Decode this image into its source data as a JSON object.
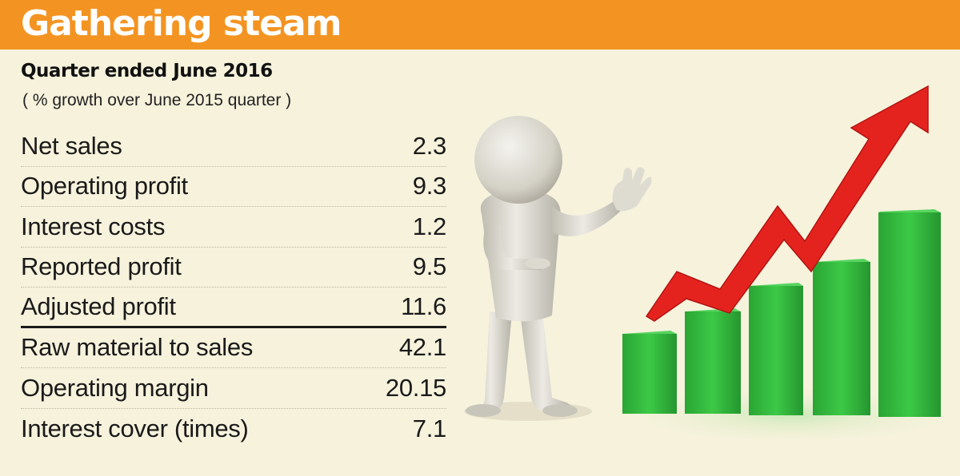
{
  "title": "Gathering steam",
  "heading": "Quarter ended June 2016",
  "subheading": "( % growth over June 2015 quarter )",
  "rows_group1": [
    {
      "label": "Net sales",
      "value": "2.3"
    },
    {
      "label": "Operating profit",
      "value": "9.3"
    },
    {
      "label": "Interest costs",
      "value": "1.2"
    },
    {
      "label": "Reported profit",
      "value": "9.5"
    },
    {
      "label": "Adjusted profit",
      "value": "11.6"
    }
  ],
  "rows_group2": [
    {
      "label": "Raw material to sales",
      "value": "42.1"
    },
    {
      "label": "Operating margin",
      "value": "20.15"
    },
    {
      "label": "Interest cover (times)",
      "value": "7.1"
    }
  ],
  "colors": {
    "banner": "#f39422",
    "background": "#f7f2dc",
    "bars": "#2fb538",
    "arrow": "#e5231e",
    "figure": "#d9d6cc"
  }
}
